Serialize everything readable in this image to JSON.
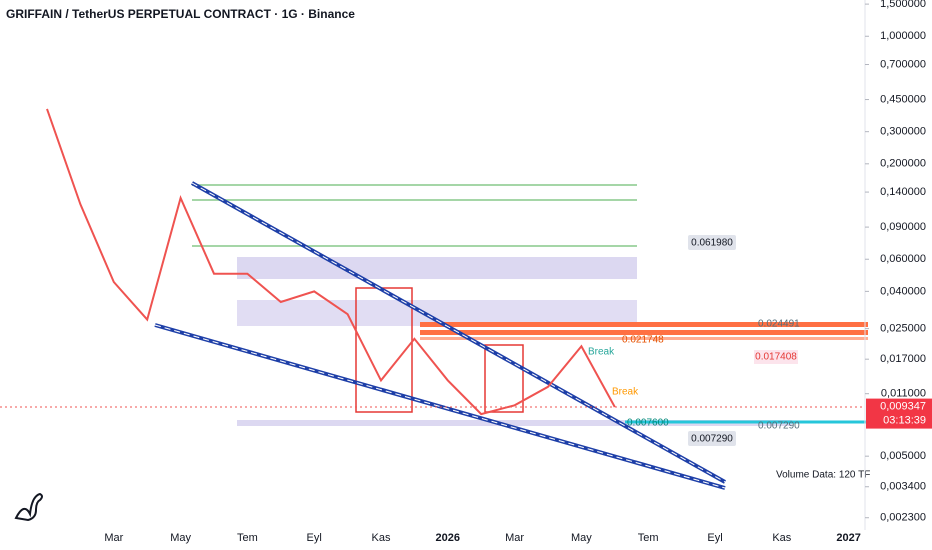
{
  "chart_data": {
    "type": "line",
    "title": "GRIFFAIN / TetherUS PERPETUAL CONTRACT · 1G · Binance",
    "categories": [
      null,
      null,
      "Mar",
      null,
      "May",
      null,
      "Tem",
      null,
      "Eyl",
      null,
      "Kas",
      null,
      "2026",
      null,
      "Mar",
      null,
      "May",
      null,
      "Tem",
      null,
      "Eyl",
      null,
      "Kas",
      null,
      "2027"
    ],
    "series": [
      {
        "name": "GRIFFAINUSDT",
        "color": "#ef5350",
        "values": [
          0.4,
          0.12,
          0.045,
          0.028,
          0.13,
          0.05,
          0.05,
          0.035,
          0.04,
          0.03,
          0.013,
          0.022,
          0.013,
          0.0085,
          0.0095,
          0.012,
          0.02,
          0.0093,
          null,
          null,
          null,
          null,
          null,
          null,
          null
        ]
      }
    ],
    "log_scale": true,
    "ylim": [
      0.00197,
      1.58
    ],
    "yticks": [
      {
        "value": 1.5,
        "label": "1,500000"
      },
      {
        "value": 1.0,
        "label": "1,000000"
      },
      {
        "value": 0.7,
        "label": "0,700000"
      },
      {
        "value": 0.45,
        "label": "0,450000"
      },
      {
        "value": 0.3,
        "label": "0,300000"
      },
      {
        "value": 0.2,
        "label": "0,200000"
      },
      {
        "value": 0.14,
        "label": "0,140000"
      },
      {
        "value": 0.09,
        "label": "0,090000"
      },
      {
        "value": 0.06,
        "label": "0,060000"
      },
      {
        "value": 0.04,
        "label": "0,040000"
      },
      {
        "value": 0.025,
        "label": "0,025000"
      },
      {
        "value": 0.017,
        "label": "0,017000"
      },
      {
        "value": 0.011,
        "label": "0,011000"
      },
      {
        "value": 0.005,
        "label": "0,005000"
      },
      {
        "value": 0.0034,
        "label": "0,003400"
      },
      {
        "value": 0.0023,
        "label": "0,002300"
      }
    ],
    "last_price": {
      "value": 0.009347,
      "label": "0,009347",
      "countdown": "03:13:39"
    },
    "annotations": {
      "high_tag": "0.061980",
      "low_tag": "0.007290",
      "poc_tag": "0.017408",
      "support_tag": "0.007600",
      "break_1": "Break",
      "break_2": "Break",
      "volume_note": "Volume Data: 120 TF",
      "upper_tag_1": "0.021748",
      "right_tag_1": "0.007290",
      "right_tag_2": "0.024491"
    }
  }
}
